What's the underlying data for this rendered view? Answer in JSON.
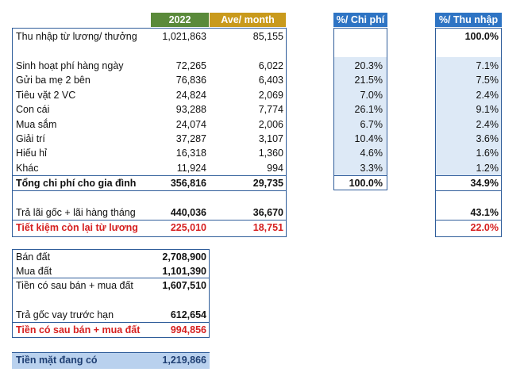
{
  "headers": {
    "year": "2022",
    "ave_month": "Ave/ month",
    "pct_expense": "%/ Chi phí",
    "pct_income": "%/ Thu nhập"
  },
  "income": {
    "label": "Thu nhập từ lương/ thưởng",
    "year": "1,021,863",
    "month": "85,155",
    "pct_income": "100.0%"
  },
  "expenses": [
    {
      "label": "Sinh hoạt phí hàng ngày",
      "year": "72,265",
      "month": "6,022",
      "pct_exp": "20.3%",
      "pct_inc": "7.1%"
    },
    {
      "label": "Gửi ba mẹ 2 bên",
      "year": "76,836",
      "month": "6,403",
      "pct_exp": "21.5%",
      "pct_inc": "7.5%"
    },
    {
      "label": "Tiêu vặt 2 VC",
      "year": "24,824",
      "month": "2,069",
      "pct_exp": "7.0%",
      "pct_inc": "2.4%"
    },
    {
      "label": "Con cái",
      "year": "93,288",
      "month": "7,774",
      "pct_exp": "26.1%",
      "pct_inc": "9.1%"
    },
    {
      "label": "Mua sắm",
      "year": "24,074",
      "month": "2,006",
      "pct_exp": "6.7%",
      "pct_inc": "2.4%"
    },
    {
      "label": "Giải trí",
      "year": "37,287",
      "month": "3,107",
      "pct_exp": "10.4%",
      "pct_inc": "3.6%"
    },
    {
      "label": "Hiếu hỉ",
      "year": "16,318",
      "month": "1,360",
      "pct_exp": "4.6%",
      "pct_inc": "1.6%"
    },
    {
      "label": "Khác",
      "year": "11,924",
      "month": "994",
      "pct_exp": "3.3%",
      "pct_inc": "1.2%"
    }
  ],
  "total": {
    "label": "Tổng chi phí cho gia đình",
    "year": "356,816",
    "month": "29,735",
    "pct_exp": "100.0%",
    "pct_inc": "34.9%"
  },
  "loan": {
    "label": "Trả lãi gốc + lãi hàng tháng",
    "year": "440,036",
    "month": "36,670",
    "pct_inc": "43.1%"
  },
  "savings": {
    "label": "Tiết kiệm còn lại từ lương",
    "year": "225,010",
    "month": "18,751",
    "pct_inc": "22.0%"
  },
  "land": {
    "sell": {
      "label": "Bán đất",
      "value": "2,708,900"
    },
    "buy": {
      "label": "Mua đất",
      "value": "1,101,390"
    },
    "after": {
      "label": "Tiền có sau bán + mua đất",
      "value": "1,607,510"
    },
    "prepay": {
      "label": "Trả gốc vay trước hạn",
      "value": "612,654"
    },
    "after2": {
      "label": "Tiền có sau bán + mua đất",
      "value": "994,856"
    }
  },
  "cash": {
    "label": "Tiền mặt đang có",
    "value": "1,219,866"
  },
  "colors": {
    "year_header": "#5a8a3a",
    "month_header": "#c99a1c",
    "pct_header": "#2e74c4",
    "cell_fill": "#dde9f6",
    "red": "#d62020"
  }
}
